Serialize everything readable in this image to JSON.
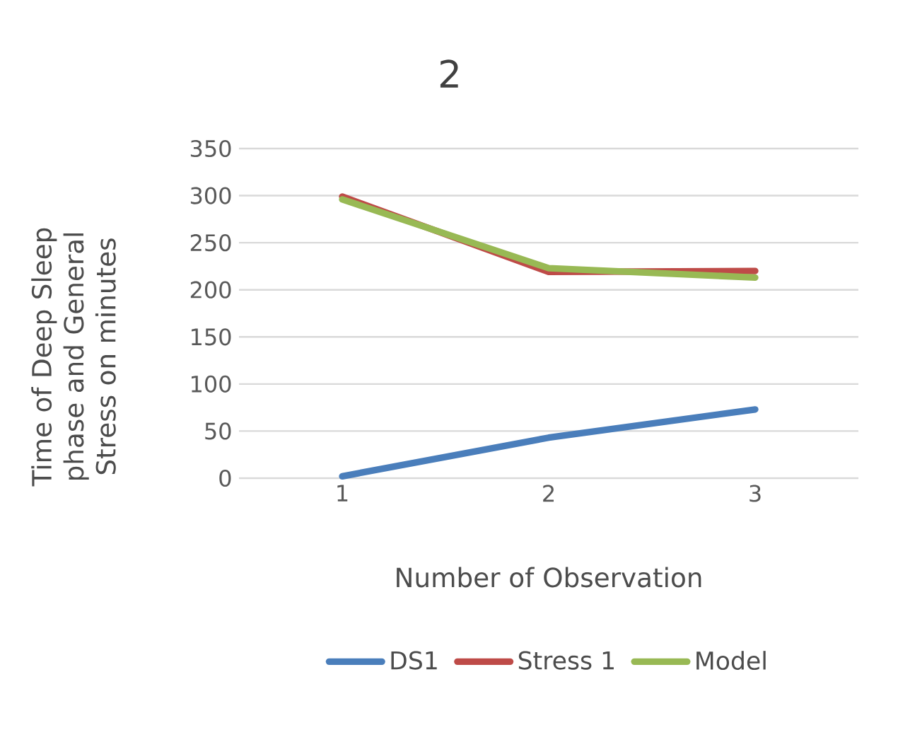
{
  "chart_data": {
    "type": "line",
    "title": "2",
    "xlabel": "Number of Observation",
    "ylabel": "Time of Deep Sleep phase and General Stress on minutes",
    "categories": [
      "1",
      "2",
      "3"
    ],
    "series": [
      {
        "name": "DS1",
        "color": "#4a7ebb",
        "values": [
          2,
          43,
          73
        ]
      },
      {
        "name": "Stress 1",
        "color": "#be4b48",
        "values": [
          299,
          219,
          220
        ]
      },
      {
        "name": "Model",
        "color": "#98b954",
        "values": [
          296,
          223,
          213
        ]
      }
    ],
    "ylim": [
      0,
      350
    ],
    "yticks": [
      0,
      50,
      100,
      150,
      200,
      250,
      300,
      350
    ],
    "grid": "y",
    "legend": "bottom",
    "marker": "none",
    "line_style": "solid"
  }
}
